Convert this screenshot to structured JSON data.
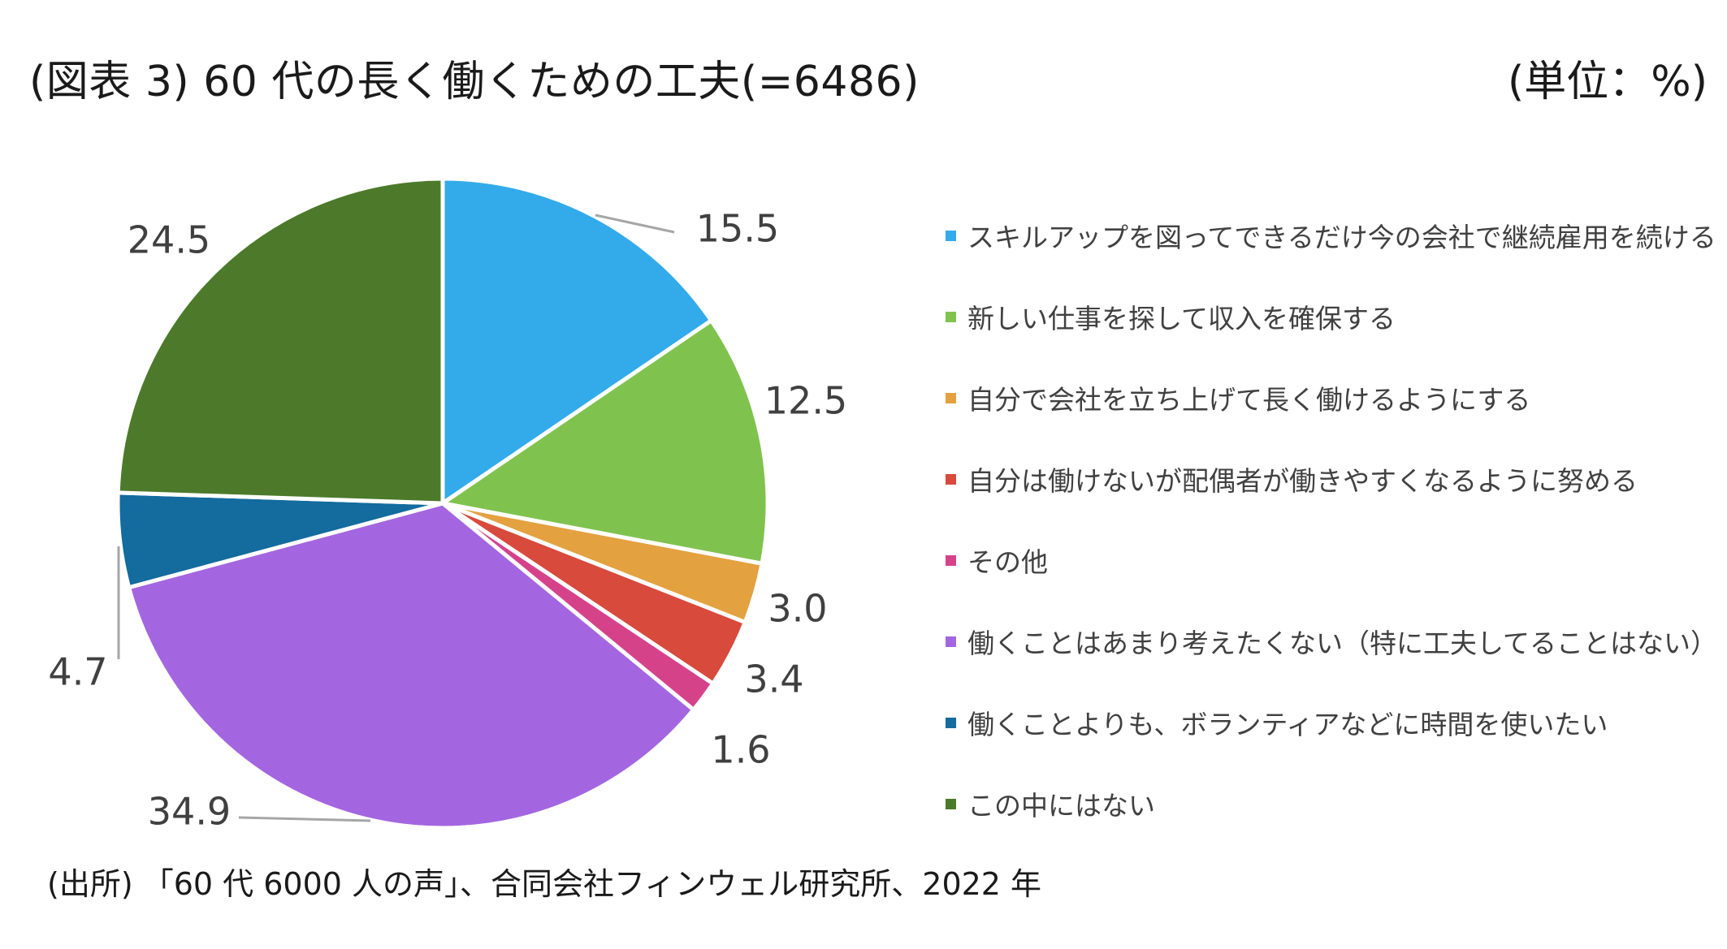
{
  "header": {
    "title": "(図表 3)  60 代の長く働くための工夫(=6486)",
    "unit": "(単位：%)"
  },
  "source": "(出所) 「60 代 6000 人の声」、合同会社フィンウェル研究所、2022 年",
  "chart_data": {
    "type": "pie",
    "start_angle_deg": 0,
    "direction": "clockwise",
    "legend_position": "right",
    "categories": [
      "スキルアップを図ってできるだけ今の会社で継続雇用を続ける",
      "新しい仕事を探して収入を確保する",
      "自分で会社を立ち上げて長く働けるようにする",
      "自分は働けないが配偶者が働きやすくなるように努める",
      "その他",
      "働くことはあまり考えたくない（特に工夫してることはない）",
      "働くことよりも、ボランティアなどに時間を使いたい",
      "この中にはない"
    ],
    "values": [
      15.5,
      12.5,
      3.0,
      3.4,
      1.6,
      34.9,
      4.7,
      24.5
    ],
    "value_labels": [
      "15.5",
      "12.5",
      "3.0",
      "3.4",
      "1.6",
      "34.9",
      "4.7",
      "24.5"
    ],
    "colors": [
      "#33ABEA",
      "#7FC34E",
      "#E4A140",
      "#D84A3C",
      "#D6428A",
      "#A366E0",
      "#136B9E",
      "#4C7A2A"
    ]
  }
}
